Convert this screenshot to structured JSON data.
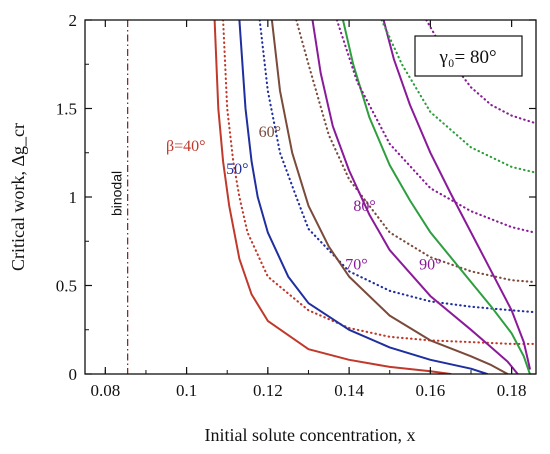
{
  "chart_data": {
    "type": "line",
    "xlabel": "Initial solute concentration, x",
    "ylabel": "Critical work, Δg_cr",
    "xlim": [
      0.075,
      0.186
    ],
    "ylim": [
      0,
      2
    ],
    "xticks": [
      "0.08",
      "0.1",
      "0.12",
      "0.14",
      "0.16",
      "0.18"
    ],
    "yticks": [
      "0",
      "0.5",
      "1",
      "1.5",
      "2"
    ],
    "grid": false,
    "legend": "none",
    "parameter_box": "γ₀= 80°",
    "binodal": {
      "label": "binodal",
      "x": 0.0855
    },
    "curve_labels": [
      {
        "text": "β=40°",
        "x": 0.0998,
        "y": 1.26,
        "color": "#c0392b"
      },
      {
        "text": "50°",
        "x": 0.1125,
        "y": 1.13,
        "color": "#1f2fa0"
      },
      {
        "text": "60°",
        "x": 0.1205,
        "y": 1.34,
        "color": "#7a4a3a"
      },
      {
        "text": "70°",
        "x": 0.1418,
        "y": 0.59,
        "color": "#8a1a9a"
      },
      {
        "text": "80°",
        "x": 0.1438,
        "y": 0.92,
        "color": "#8a1a9a"
      },
      {
        "text": "90°",
        "x": 0.16,
        "y": 0.59,
        "color": "#8a1a9a"
      }
    ],
    "series": [
      {
        "name": "β=40°",
        "style": "solid",
        "color": "#c0392b",
        "points": [
          [
            0.1069,
            2.0
          ],
          [
            0.1078,
            1.5
          ],
          [
            0.109,
            1.2
          ],
          [
            0.1105,
            0.95
          ],
          [
            0.113,
            0.65
          ],
          [
            0.116,
            0.45
          ],
          [
            0.12,
            0.3
          ],
          [
            0.13,
            0.14
          ],
          [
            0.14,
            0.08
          ],
          [
            0.15,
            0.04
          ],
          [
            0.16,
            0.016
          ],
          [
            0.165,
            0.0
          ]
        ]
      },
      {
        "name": "β=40° (dotted)",
        "style": "dotted",
        "color": "#c0392b",
        "points": [
          [
            0.109,
            2.0
          ],
          [
            0.11,
            1.5
          ],
          [
            0.1115,
            1.2
          ],
          [
            0.113,
            1.0
          ],
          [
            0.115,
            0.8
          ],
          [
            0.12,
            0.55
          ],
          [
            0.13,
            0.36
          ],
          [
            0.14,
            0.26
          ],
          [
            0.15,
            0.21
          ],
          [
            0.16,
            0.19
          ],
          [
            0.17,
            0.18
          ],
          [
            0.18,
            0.17
          ],
          [
            0.1855,
            0.17
          ]
        ]
      },
      {
        "name": "β=50°",
        "style": "solid",
        "color": "#1f2fa0",
        "points": [
          [
            0.113,
            2.0
          ],
          [
            0.1145,
            1.5
          ],
          [
            0.116,
            1.2
          ],
          [
            0.1175,
            1.0
          ],
          [
            0.12,
            0.8
          ],
          [
            0.125,
            0.55
          ],
          [
            0.13,
            0.4
          ],
          [
            0.14,
            0.25
          ],
          [
            0.15,
            0.15
          ],
          [
            0.16,
            0.08
          ],
          [
            0.17,
            0.03
          ],
          [
            0.174,
            0.0
          ]
        ]
      },
      {
        "name": "β=50° (dotted)",
        "style": "dotted",
        "color": "#1f2fa0",
        "points": [
          [
            0.118,
            2.0
          ],
          [
            0.12,
            1.6
          ],
          [
            0.123,
            1.25
          ],
          [
            0.127,
            1.0
          ],
          [
            0.13,
            0.82
          ],
          [
            0.14,
            0.58
          ],
          [
            0.15,
            0.47
          ],
          [
            0.16,
            0.41
          ],
          [
            0.17,
            0.38
          ],
          [
            0.18,
            0.36
          ],
          [
            0.1855,
            0.35
          ]
        ]
      },
      {
        "name": "β=60°",
        "style": "solid",
        "color": "#7a4a3a",
        "points": [
          [
            0.121,
            2.0
          ],
          [
            0.123,
            1.6
          ],
          [
            0.126,
            1.25
          ],
          [
            0.13,
            0.95
          ],
          [
            0.135,
            0.72
          ],
          [
            0.14,
            0.55
          ],
          [
            0.15,
            0.33
          ],
          [
            0.16,
            0.19
          ],
          [
            0.17,
            0.1
          ],
          [
            0.175,
            0.05
          ],
          [
            0.179,
            0.0
          ]
        ]
      },
      {
        "name": "β=60° (dotted)",
        "style": "dotted",
        "color": "#7a4a3a",
        "points": [
          [
            0.127,
            2.0
          ],
          [
            0.13,
            1.75
          ],
          [
            0.135,
            1.35
          ],
          [
            0.14,
            1.1
          ],
          [
            0.15,
            0.8
          ],
          [
            0.16,
            0.66
          ],
          [
            0.17,
            0.58
          ],
          [
            0.18,
            0.53
          ],
          [
            0.1855,
            0.52
          ]
        ]
      },
      {
        "name": "β=70°",
        "style": "solid",
        "color": "#8a1a9a",
        "points": [
          [
            0.131,
            2.0
          ],
          [
            0.133,
            1.7
          ],
          [
            0.136,
            1.4
          ],
          [
            0.14,
            1.15
          ],
          [
            0.145,
            0.9
          ],
          [
            0.15,
            0.7
          ],
          [
            0.16,
            0.44
          ],
          [
            0.17,
            0.25
          ],
          [
            0.175,
            0.15
          ],
          [
            0.179,
            0.07
          ],
          [
            0.1815,
            0.0
          ]
        ]
      },
      {
        "name": "β=80°",
        "style": "solid",
        "color": "#2e9e3e",
        "points": [
          [
            0.1385,
            2.0
          ],
          [
            0.141,
            1.75
          ],
          [
            0.145,
            1.45
          ],
          [
            0.15,
            1.18
          ],
          [
            0.155,
            0.98
          ],
          [
            0.16,
            0.8
          ],
          [
            0.17,
            0.52
          ],
          [
            0.175,
            0.38
          ],
          [
            0.18,
            0.23
          ],
          [
            0.183,
            0.1
          ],
          [
            0.1845,
            0.0
          ]
        ]
      },
      {
        "name": "β=70° (dotted)",
        "style": "dotted",
        "color": "#8a1a9a",
        "points": [
          [
            0.137,
            2.0
          ],
          [
            0.142,
            1.65
          ],
          [
            0.15,
            1.3
          ],
          [
            0.16,
            1.05
          ],
          [
            0.17,
            0.92
          ],
          [
            0.18,
            0.83
          ],
          [
            0.1855,
            0.8
          ]
        ]
      },
      {
        "name": "β=90°",
        "style": "solid",
        "color": "#8a1a9a",
        "points": [
          [
            0.1485,
            2.0
          ],
          [
            0.151,
            1.78
          ],
          [
            0.155,
            1.52
          ],
          [
            0.16,
            1.25
          ],
          [
            0.165,
            1.02
          ],
          [
            0.17,
            0.8
          ],
          [
            0.175,
            0.58
          ],
          [
            0.18,
            0.36
          ],
          [
            0.183,
            0.18
          ],
          [
            0.1845,
            0.03
          ]
        ]
      },
      {
        "name": "β=80° (dotted)",
        "style": "dotted",
        "color": "#2e9e3e",
        "points": [
          [
            0.148,
            2.0
          ],
          [
            0.153,
            1.75
          ],
          [
            0.16,
            1.48
          ],
          [
            0.17,
            1.28
          ],
          [
            0.18,
            1.17
          ],
          [
            0.1855,
            1.14
          ]
        ]
      },
      {
        "name": "β=90° (dotted)",
        "style": "dotted",
        "color": "#8a1a9a",
        "points": [
          [
            0.159,
            2.0
          ],
          [
            0.164,
            1.8
          ],
          [
            0.17,
            1.62
          ],
          [
            0.175,
            1.52
          ],
          [
            0.18,
            1.46
          ],
          [
            0.1855,
            1.42
          ]
        ]
      }
    ]
  }
}
